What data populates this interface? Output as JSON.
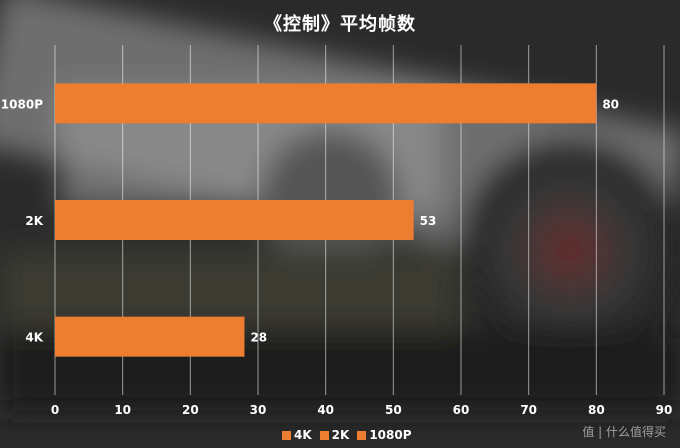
{
  "title": "《控制》平均帧数",
  "watermark": "值 | 什么值得买",
  "colors": {
    "bar": "#ed7d31",
    "grid": "#ffffff",
    "text": "#ffffff"
  },
  "chart_data": {
    "type": "bar",
    "orientation": "horizontal",
    "categories": [
      "4K",
      "2K",
      "1080P"
    ],
    "series": [
      {
        "name": "4K",
        "values": [
          28,
          null,
          null
        ]
      },
      {
        "name": "2K",
        "values": [
          null,
          53,
          null
        ]
      },
      {
        "name": "1080P",
        "values": [
          null,
          null,
          80
        ]
      }
    ],
    "values": [
      28,
      53,
      80
    ],
    "xlim": [
      0,
      90
    ],
    "xticks": [
      0,
      10,
      20,
      30,
      40,
      50,
      60,
      70,
      80,
      90
    ],
    "grid": true,
    "legend_position": "bottom",
    "legend": [
      "4K",
      "2K",
      "1080P"
    ]
  }
}
